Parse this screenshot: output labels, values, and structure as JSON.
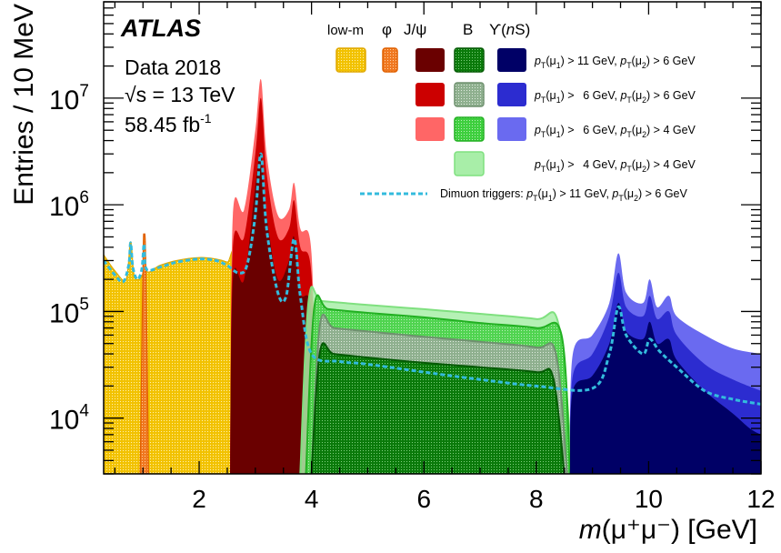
{
  "chart_data": {
    "type": "area",
    "ylabel": "Entries / 10 MeV",
    "xlabel_math": "m",
    "xlabel_rest": "(μ⁺μ⁻) [GeV]",
    "xlim": [
      0.3,
      12
    ],
    "ylim": [
      3000,
      80000000
    ],
    "yscale": "log",
    "x_ticks": [
      2,
      4,
      6,
      8,
      10,
      12
    ],
    "y_ticks": [
      {
        "value": 10000,
        "label": "10",
        "exp": "4"
      },
      {
        "value": 100000,
        "label": "10",
        "exp": "5"
      },
      {
        "value": 1000000,
        "label": "10",
        "exp": "6"
      },
      {
        "value": 10000000,
        "label": "10",
        "exp": "7"
      }
    ],
    "annotations": {
      "experiment": "ATLAS",
      "dataset": "Data 2018",
      "energy": "√s = 13 TeV",
      "lumi": "58.45 fb",
      "lumi_exp": "-1"
    },
    "legend": {
      "columns": [
        "low-m",
        "φ",
        "J/ψ",
        "B",
        "ϒ(nS)"
      ],
      "rows": [
        "pT(μ1) > 11 GeV, pT(μ2) > 6 GeV",
        "pT(μ1) > 6 GeV, pT(μ2) > 6 GeV",
        "pT(μ1) > 6 GeV, pT(μ2) > 4 GeV",
        "pT(μ1) > 4 GeV, pT(μ2) > 4 GeV"
      ],
      "dimuon": "Dimuon triggers: pT(μ1) > 11 GeV, pT(μ2) > 6 GeV"
    },
    "colors": {
      "lowm": "#f0c000",
      "phi": "#f07820",
      "jpsi": [
        "#6a0000",
        "#cc0000",
        "#ff6666"
      ],
      "b": [
        "#0a7a0a",
        "#8fb08f",
        "#3ecf3e",
        "#a8eea8"
      ],
      "upsilon": [
        "#000066",
        "#2c2cd0",
        "#6a6af0"
      ],
      "dimuon": "#33bbdd"
    },
    "series": [
      {
        "region": "low-m",
        "points": [
          [
            0.3,
            340000
          ],
          [
            0.5,
            240000
          ],
          [
            0.7,
            200000
          ],
          [
            0.78,
            450000
          ],
          [
            0.85,
            210000
          ],
          [
            1.0,
            230000
          ],
          [
            1.02,
            480000
          ],
          [
            1.06,
            240000
          ],
          [
            1.3,
            270000
          ],
          [
            1.6,
            300000
          ],
          [
            2.0,
            320000
          ],
          [
            2.3,
            310000
          ],
          [
            2.5,
            290000
          ],
          [
            2.65,
            260000
          ],
          [
            2.75,
            3000
          ]
        ]
      },
      {
        "region": "phi",
        "points": [
          [
            0.95,
            3000
          ],
          [
            1.0,
            300000
          ],
          [
            1.02,
            500000
          ],
          [
            1.05,
            300000
          ],
          [
            1.1,
            3000
          ]
        ]
      },
      {
        "region": "J/ψ",
        "tier": 3,
        "points": [
          [
            2.55,
            3000
          ],
          [
            2.6,
            800000
          ],
          [
            2.8,
            900000
          ],
          [
            3.0,
            5000000
          ],
          [
            3.1,
            15000000
          ],
          [
            3.2,
            3000000
          ],
          [
            3.4,
            800000
          ],
          [
            3.6,
            900000
          ],
          [
            3.69,
            1600000
          ],
          [
            3.8,
            600000
          ],
          [
            4.0,
            350000
          ],
          [
            4.1,
            3000
          ]
        ]
      },
      {
        "region": "J/ψ",
        "tier": 2,
        "points": [
          [
            2.55,
            3000
          ],
          [
            2.6,
            400000
          ],
          [
            2.8,
            500000
          ],
          [
            3.0,
            3000000
          ],
          [
            3.1,
            10000000
          ],
          [
            3.2,
            2000000
          ],
          [
            3.4,
            500000
          ],
          [
            3.6,
            600000
          ],
          [
            3.69,
            1100000
          ],
          [
            3.8,
            400000
          ],
          [
            4.0,
            220000
          ],
          [
            4.1,
            3000
          ]
        ]
      },
      {
        "region": "J/ψ",
        "tier": 1,
        "points": [
          [
            2.55,
            3000
          ],
          [
            2.6,
            200000
          ],
          [
            2.8,
            200000
          ],
          [
            3.0,
            1500000
          ],
          [
            3.1,
            3000000
          ],
          [
            3.2,
            800000
          ],
          [
            3.4,
            200000
          ],
          [
            3.6,
            300000
          ],
          [
            3.69,
            500000
          ],
          [
            3.8,
            150000
          ],
          [
            4.0,
            100000
          ],
          [
            4.1,
            3000
          ]
        ]
      },
      {
        "region": "B",
        "tier": 4,
        "points": [
          [
            3.8,
            3000
          ],
          [
            3.95,
            130000
          ],
          [
            4.2,
            125000
          ],
          [
            5,
            115000
          ],
          [
            6,
            105000
          ],
          [
            7,
            95000
          ],
          [
            8,
            85000
          ],
          [
            8.4,
            75000
          ],
          [
            8.65,
            3000
          ]
        ]
      },
      {
        "region": "B",
        "tier": 3,
        "points": [
          [
            3.9,
            3000
          ],
          [
            4.05,
            110000
          ],
          [
            4.3,
            105000
          ],
          [
            5,
            97000
          ],
          [
            6,
            88000
          ],
          [
            7,
            78000
          ],
          [
            8,
            70000
          ],
          [
            8.45,
            60000
          ],
          [
            8.6,
            3000
          ]
        ]
      },
      {
        "region": "B",
        "tier": 2,
        "points": [
          [
            4.0,
            3000
          ],
          [
            4.15,
            75000
          ],
          [
            4.4,
            70000
          ],
          [
            5,
            65000
          ],
          [
            6,
            58000
          ],
          [
            7,
            52000
          ],
          [
            8,
            46000
          ],
          [
            8.35,
            40000
          ],
          [
            8.55,
            3000
          ]
        ]
      },
      {
        "region": "B",
        "tier": 1,
        "points": [
          [
            4.0,
            3000
          ],
          [
            4.15,
            42000
          ],
          [
            4.4,
            40000
          ],
          [
            5,
            37000
          ],
          [
            6,
            33000
          ],
          [
            7,
            30000
          ],
          [
            8,
            27000
          ],
          [
            8.3,
            24000
          ],
          [
            8.5,
            3000
          ]
        ]
      },
      {
        "region": "ϒ(nS)",
        "tier": 3,
        "points": [
          [
            8.6,
            3000
          ],
          [
            8.65,
            40000
          ],
          [
            9.0,
            60000
          ],
          [
            9.3,
            120000
          ],
          [
            9.46,
            350000
          ],
          [
            9.6,
            150000
          ],
          [
            9.9,
            120000
          ],
          [
            10.02,
            200000
          ],
          [
            10.15,
            110000
          ],
          [
            10.36,
            140000
          ],
          [
            10.5,
            90000
          ],
          [
            11.0,
            60000
          ],
          [
            11.5,
            45000
          ],
          [
            12.0,
            40000
          ]
        ]
      },
      {
        "region": "ϒ(nS)",
        "tier": 2,
        "points": [
          [
            8.6,
            3000
          ],
          [
            8.65,
            25000
          ],
          [
            9.0,
            40000
          ],
          [
            9.3,
            90000
          ],
          [
            9.46,
            230000
          ],
          [
            9.6,
            110000
          ],
          [
            9.9,
            90000
          ],
          [
            10.02,
            140000
          ],
          [
            10.15,
            85000
          ],
          [
            10.36,
            100000
          ],
          [
            10.5,
            60000
          ],
          [
            11.0,
            32000
          ],
          [
            11.5,
            23000
          ],
          [
            12.0,
            18000
          ]
        ]
      },
      {
        "region": "ϒ(nS)",
        "tier": 1,
        "points": [
          [
            8.6,
            3000
          ],
          [
            8.65,
            18000
          ],
          [
            9.0,
            25000
          ],
          [
            9.3,
            50000
          ],
          [
            9.46,
            120000
          ],
          [
            9.6,
            65000
          ],
          [
            9.9,
            55000
          ],
          [
            10.02,
            80000
          ],
          [
            10.15,
            50000
          ],
          [
            10.36,
            55000
          ],
          [
            10.5,
            35000
          ],
          [
            11.0,
            18000
          ],
          [
            11.5,
            11000
          ],
          [
            11.8,
            8000
          ],
          [
            12.0,
            7000
          ]
        ]
      },
      {
        "region": "dimuon",
        "points": [
          [
            0.3,
            300000
          ],
          [
            0.5,
            220000
          ],
          [
            0.65,
            190000
          ],
          [
            0.75,
            280000
          ],
          [
            0.78,
            440000
          ],
          [
            0.82,
            260000
          ],
          [
            0.9,
            200000
          ],
          [
            0.98,
            250000
          ],
          [
            1.02,
            430000
          ],
          [
            1.06,
            250000
          ],
          [
            1.3,
            260000
          ],
          [
            1.6,
            290000
          ],
          [
            2.0,
            310000
          ],
          [
            2.3,
            300000
          ],
          [
            2.5,
            270000
          ],
          [
            2.7,
            230000
          ],
          [
            2.85,
            270000
          ],
          [
            3.0,
            800000
          ],
          [
            3.1,
            3000000
          ],
          [
            3.2,
            600000
          ],
          [
            3.4,
            150000
          ],
          [
            3.55,
            140000
          ],
          [
            3.69,
            480000
          ],
          [
            3.8,
            140000
          ],
          [
            4.0,
            40000
          ],
          [
            4.5,
            34000
          ],
          [
            5,
            32000
          ],
          [
            6,
            27000
          ],
          [
            7,
            23000
          ],
          [
            8,
            20000
          ],
          [
            9.0,
            19000
          ],
          [
            9.3,
            40000
          ],
          [
            9.46,
            110000
          ],
          [
            9.6,
            60000
          ],
          [
            9.9,
            40000
          ],
          [
            10.02,
            55000
          ],
          [
            10.2,
            42000
          ],
          [
            10.5,
            30000
          ],
          [
            11.0,
            18000
          ],
          [
            11.5,
            15000
          ],
          [
            12.0,
            13500
          ]
        ]
      }
    ]
  }
}
